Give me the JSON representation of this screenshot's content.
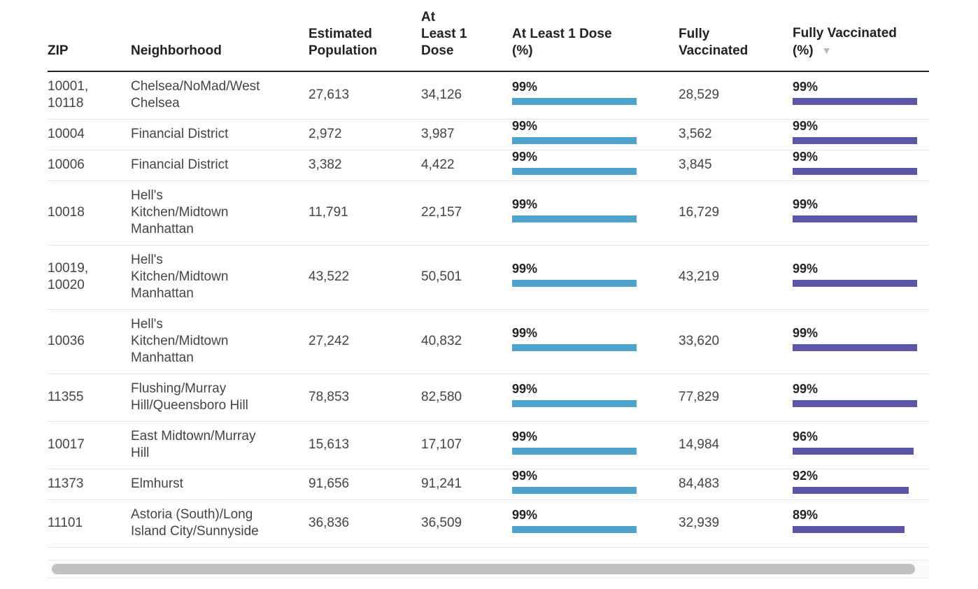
{
  "table": {
    "headers": [
      [
        "ZIP"
      ],
      [
        "Neighborhood"
      ],
      [
        "Estimated",
        "Population"
      ],
      [
        "At",
        "Least 1",
        "Dose"
      ],
      [
        "At Least 1 Dose",
        "(%)"
      ],
      [
        "Fully",
        "Vaccinated"
      ],
      [
        "Fully Vaccinated",
        "(%)"
      ]
    ],
    "sort_icon": "▼",
    "rows": [
      {
        "zip": [
          "10001,",
          "10118"
        ],
        "neighborhood": [
          "Chelsea/NoMad/West",
          "Chelsea"
        ],
        "population": "27,613",
        "dose1": "34,126",
        "dose1_pct": "99%",
        "dose1_frac": 0.99,
        "fully": "28,529",
        "fully_pct": "99%",
        "fully_frac": 0.99,
        "h": 68
      },
      {
        "zip": [
          "10004"
        ],
        "neighborhood": [
          "Financial District"
        ],
        "population": "2,972",
        "dose1": "3,987",
        "dose1_pct": "99%",
        "dose1_frac": 0.99,
        "fully": "3,562",
        "fully_pct": "99%",
        "fully_frac": 0.99,
        "h": 44
      },
      {
        "zip": [
          "10006"
        ],
        "neighborhood": [
          "Financial District"
        ],
        "population": "3,382",
        "dose1": "4,422",
        "dose1_pct": "99%",
        "dose1_frac": 0.99,
        "fully": "3,845",
        "fully_pct": "99%",
        "fully_frac": 0.99,
        "h": 44
      },
      {
        "zip": [
          "10018"
        ],
        "neighborhood": [
          "Hell's",
          "Kitchen/Midtown",
          "Manhattan"
        ],
        "population": "11,791",
        "dose1": "22,157",
        "dose1_pct": "99%",
        "dose1_frac": 0.99,
        "fully": "16,729",
        "fully_pct": "99%",
        "fully_frac": 0.99,
        "h": 92
      },
      {
        "zip": [
          "10019,",
          "10020"
        ],
        "neighborhood": [
          "Hell's",
          "Kitchen/Midtown",
          "Manhattan"
        ],
        "population": "43,522",
        "dose1": "50,501",
        "dose1_pct": "99%",
        "dose1_frac": 0.99,
        "fully": "43,219",
        "fully_pct": "99%",
        "fully_frac": 0.99,
        "h": 92
      },
      {
        "zip": [
          "10036"
        ],
        "neighborhood": [
          "Hell's",
          "Kitchen/Midtown",
          "Manhattan"
        ],
        "population": "27,242",
        "dose1": "40,832",
        "dose1_pct": "99%",
        "dose1_frac": 0.99,
        "fully": "33,620",
        "fully_pct": "99%",
        "fully_frac": 0.99,
        "h": 92
      },
      {
        "zip": [
          "11355"
        ],
        "neighborhood": [
          "Flushing/Murray",
          "Hill/Queensboro Hill"
        ],
        "population": "78,853",
        "dose1": "82,580",
        "dose1_pct": "99%",
        "dose1_frac": 0.99,
        "fully": "77,829",
        "fully_pct": "99%",
        "fully_frac": 0.99,
        "h": 68
      },
      {
        "zip": [
          "10017"
        ],
        "neighborhood": [
          "East Midtown/Murray",
          "Hill"
        ],
        "population": "15,613",
        "dose1": "17,107",
        "dose1_pct": "99%",
        "dose1_frac": 0.99,
        "fully": "14,984",
        "fully_pct": "96%",
        "fully_frac": 0.96,
        "h": 68
      },
      {
        "zip": [
          "11373"
        ],
        "neighborhood": [
          "Elmhurst"
        ],
        "population": "91,656",
        "dose1": "91,241",
        "dose1_pct": "99%",
        "dose1_frac": 0.99,
        "fully": "84,483",
        "fully_pct": "92%",
        "fully_frac": 0.92,
        "h": 44
      },
      {
        "zip": [
          "11101"
        ],
        "neighborhood": [
          "Astoria (South)/Long",
          "Island City/Sunnyside"
        ],
        "population": "36,836",
        "dose1": "36,509",
        "dose1_pct": "99%",
        "dose1_frac": 0.99,
        "fully": "32,939",
        "fully_pct": "89%",
        "fully_frac": 0.89,
        "h": 68
      }
    ]
  },
  "colors": {
    "dose1_bar": "#4da3cb",
    "fully_bar": "#5b56a6"
  }
}
